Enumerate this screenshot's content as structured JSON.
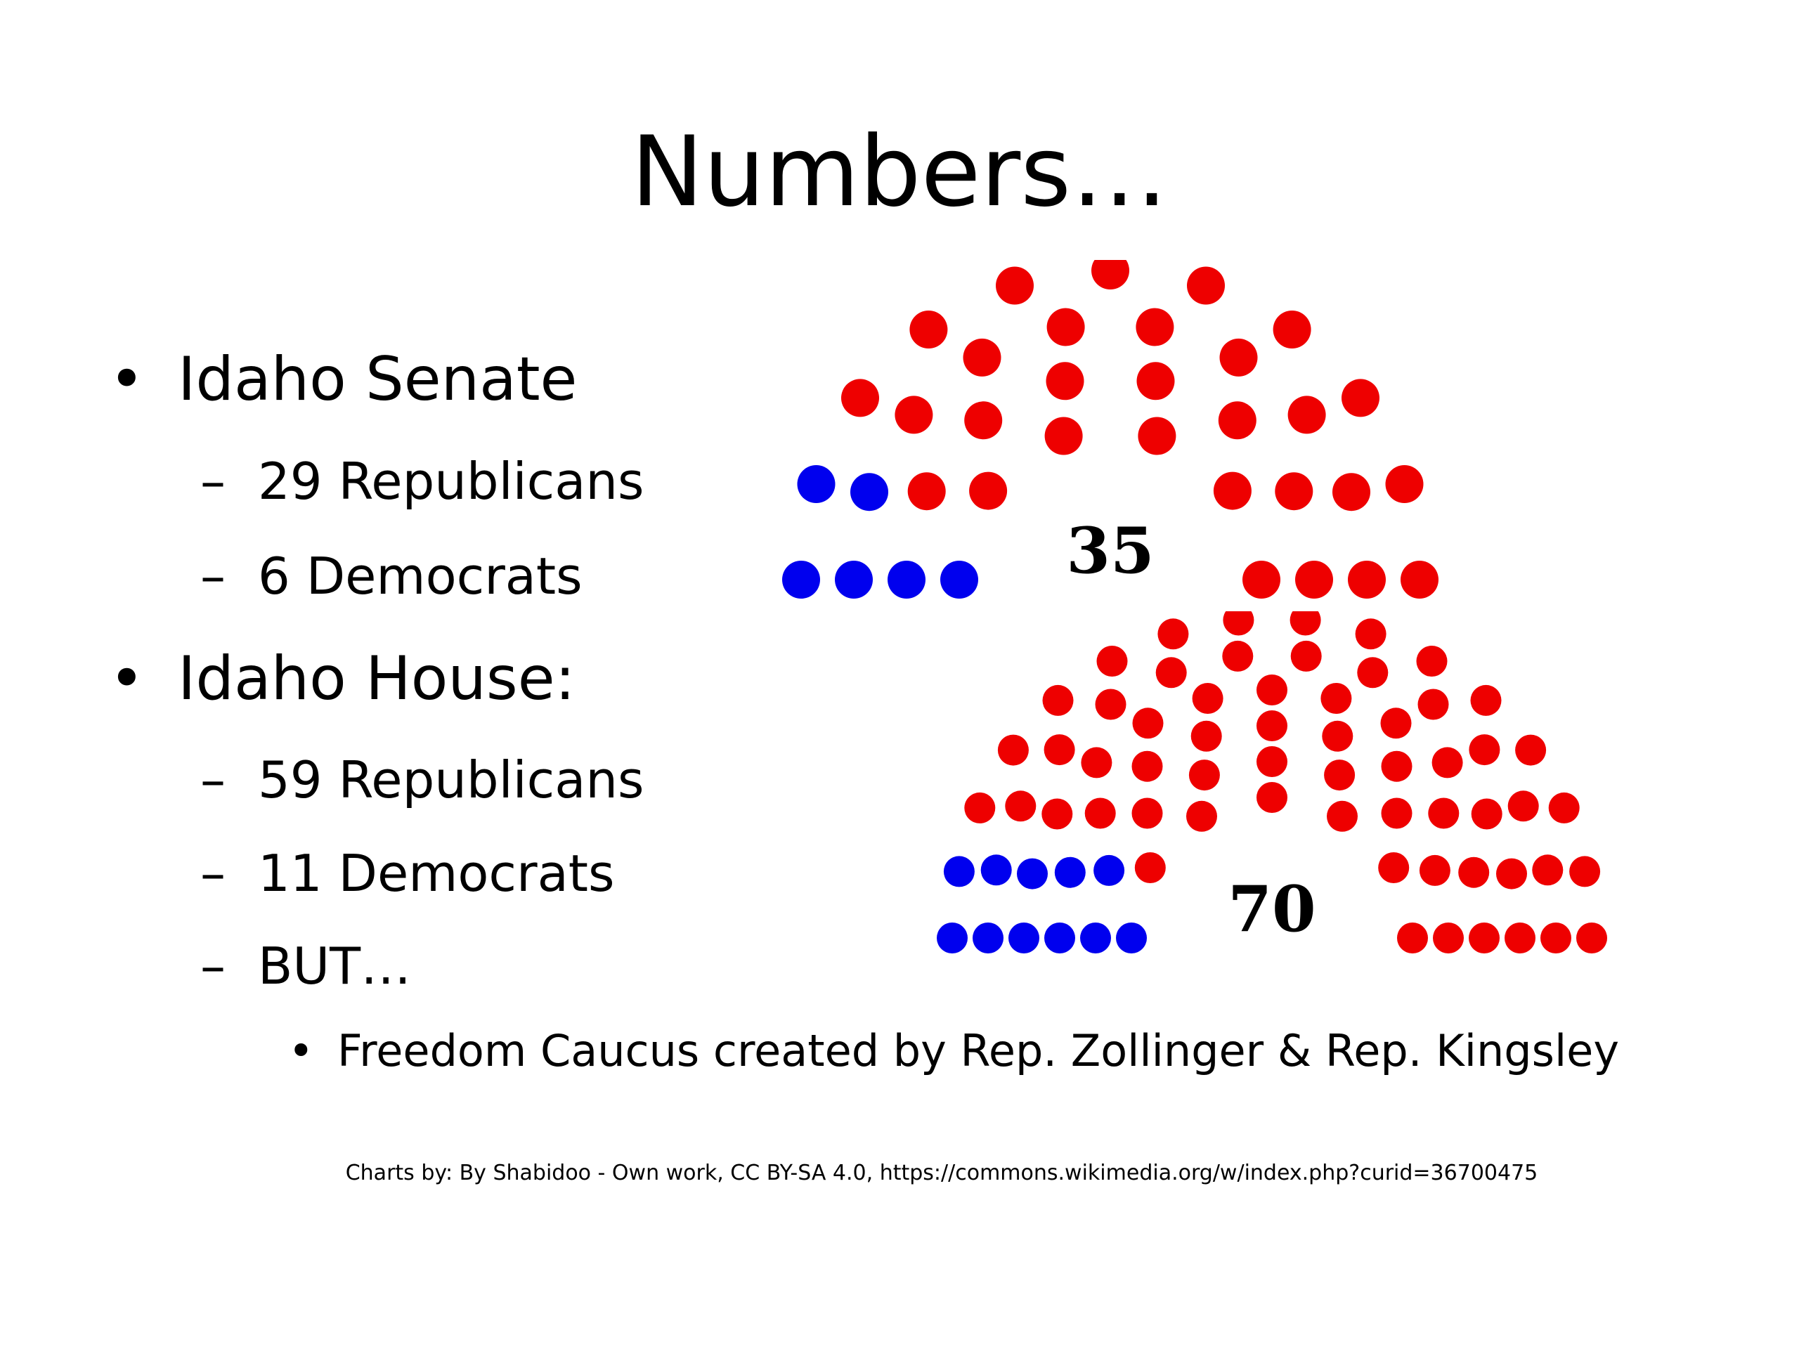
{
  "slide": {
    "title": "Numbers…",
    "credit": "Charts by:  By Shabidoo - Own work, CC BY-SA 4.0, https://commons.wikimedia.org/w/index.php?curid=36700475"
  },
  "bullets": {
    "senate": "Idaho Senate",
    "senate_rep": "29 Republicans",
    "senate_dem": "6 Democrats",
    "house": "Idaho House:",
    "house_rep": "59 Republicans",
    "house_dem": "11 Democrats",
    "house_but": "BUT…",
    "caucus": "Freedom Caucus created by Rep. Zollinger & Rep. Kingsley",
    "bullet_char": "•",
    "dash_char": "–"
  },
  "colors": {
    "republican": "#ee0000",
    "democrat": "#0000ee"
  },
  "chart_data": [
    {
      "type": "parliament",
      "total_label": "35",
      "total": 35,
      "series": [
        {
          "values": [
            6
          ],
          "color": "#0000ee"
        },
        {
          "values": [
            29
          ],
          "color": "#ee0000"
        }
      ]
    },
    {
      "type": "parliament",
      "total_label": "70",
      "total": 70,
      "series": [
        {
          "values": [
            11
          ],
          "color": "#0000ee"
        },
        {
          "values": [
            59
          ],
          "color": "#ee0000"
        }
      ]
    }
  ]
}
